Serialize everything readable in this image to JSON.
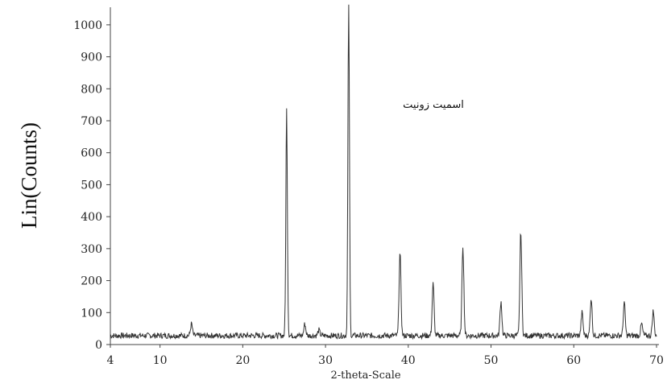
{
  "chart_data": {
    "type": "line",
    "title": "",
    "annotation": "اسمیت زونیت",
    "xlabel": "2-theta-Scale",
    "ylabel": "Lin(Counts)",
    "xlim": [
      4,
      70
    ],
    "ylim": [
      0,
      1050
    ],
    "x_ticks": [
      4,
      10,
      20,
      30,
      40,
      50,
      60,
      70
    ],
    "y_ticks": [
      0,
      100,
      200,
      300,
      400,
      500,
      600,
      700,
      800,
      900,
      1000
    ],
    "grid": false,
    "line_color": "#333333",
    "baseline_counts": 28,
    "peaks": [
      {
        "x": 13.8,
        "y": 65
      },
      {
        "x": 25.3,
        "y": 735
      },
      {
        "x": 27.5,
        "y": 65
      },
      {
        "x": 29.2,
        "y": 45
      },
      {
        "x": 32.8,
        "y": 1055
      },
      {
        "x": 39.0,
        "y": 285
      },
      {
        "x": 43.0,
        "y": 190
      },
      {
        "x": 46.6,
        "y": 310
      },
      {
        "x": 51.2,
        "y": 135
      },
      {
        "x": 53.6,
        "y": 355
      },
      {
        "x": 61.0,
        "y": 100
      },
      {
        "x": 62.1,
        "y": 145
      },
      {
        "x": 66.1,
        "y": 130
      },
      {
        "x": 68.2,
        "y": 65
      },
      {
        "x": 69.6,
        "y": 105
      }
    ]
  }
}
